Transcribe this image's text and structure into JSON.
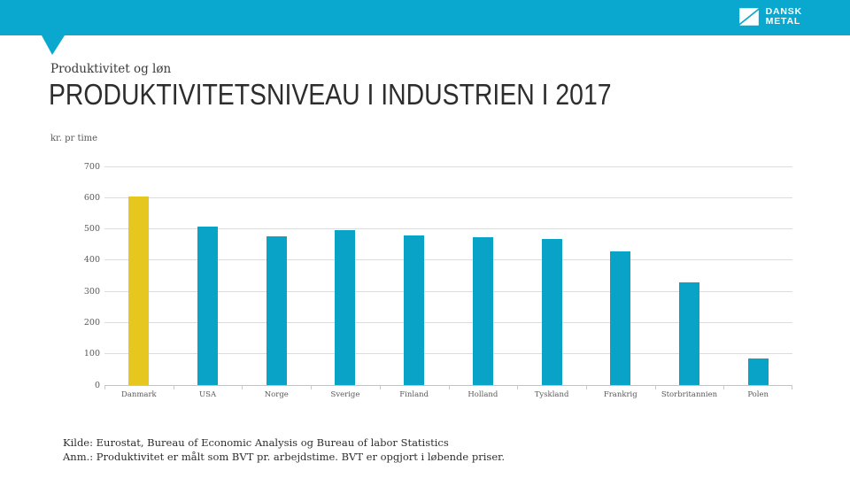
{
  "brand": {
    "line1": "DANSK",
    "line2": "METAL"
  },
  "colors": {
    "accent_teal": "#0aa8ce",
    "bar_teal": "#0aa3c8",
    "bar_yellow": "#e5c71f",
    "gridline": "#dcdcdc",
    "axis_text": "#595959",
    "title_text": "#2d2d2d"
  },
  "header": {
    "eyebrow": "Produktivitet og løn",
    "title": "PRODUKTIVITETSNIVEAU I INDUSTRIEN I 2017"
  },
  "chart_data": {
    "type": "bar",
    "title": "PRODUKTIVITETSNIVEAU I INDUSTRIEN I 2017",
    "unit_label": "kr. pr time",
    "categories": [
      "Danmark",
      "USA",
      "Norge",
      "Sverige",
      "Finland",
      "Holland",
      "Tyskland",
      "Frankrig",
      "Storbritannien",
      "Polen"
    ],
    "values": [
      605,
      507,
      476,
      497,
      479,
      473,
      467,
      428,
      329,
      85
    ],
    "bar_colors": [
      "#e5c71f",
      "#0aa3c8",
      "#0aa3c8",
      "#0aa3c8",
      "#0aa3c8",
      "#0aa3c8",
      "#0aa3c8",
      "#0aa3c8",
      "#0aa3c8",
      "#0aa3c8"
    ],
    "ylim": [
      0,
      700
    ],
    "yticks": [
      0,
      100,
      200,
      300,
      400,
      500,
      600,
      700
    ],
    "grid": true,
    "legend": "none",
    "xlabel": "",
    "ylabel": "kr. pr time"
  },
  "footer": {
    "source": "Kilde: Eurostat, Bureau of Economic Analysis og Bureau of labor Statistics",
    "note": "Anm.: Produktivitet er målt som BVT pr. arbejdstime. BVT er opgjort i løbende priser."
  }
}
